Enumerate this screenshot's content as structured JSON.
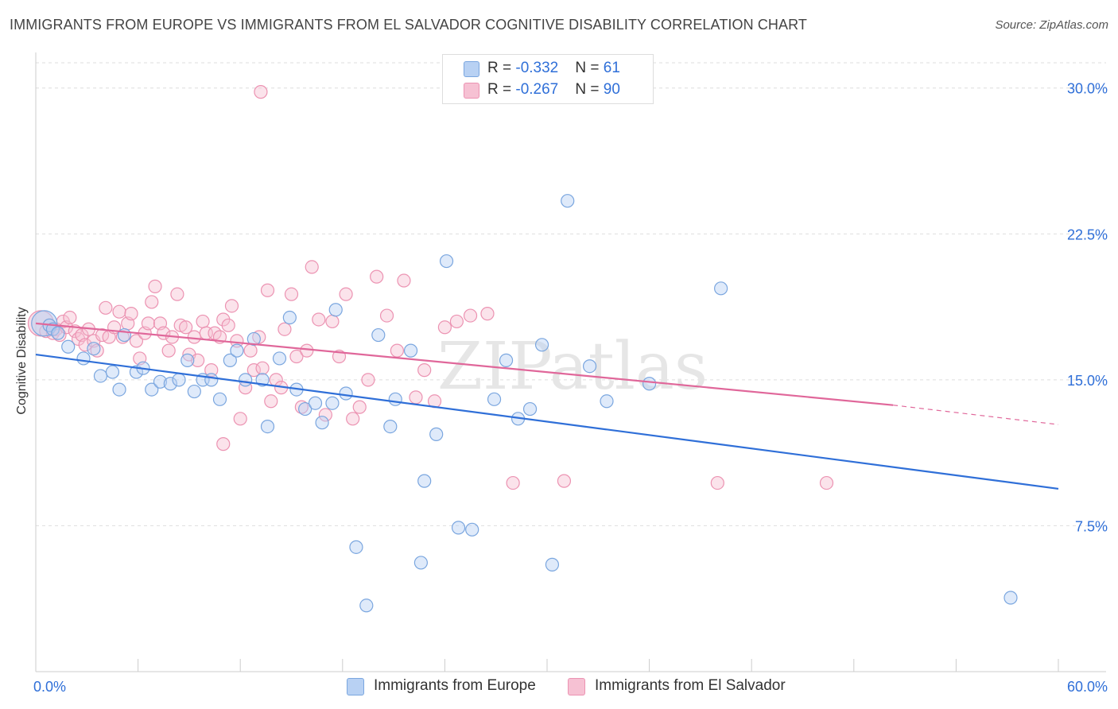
{
  "title": "IMMIGRANTS FROM EUROPE VS IMMIGRANTS FROM EL SALVADOR COGNITIVE DISABILITY CORRELATION CHART",
  "source": "Source: ZipAtlas.com",
  "watermark": "ZIPatlas",
  "legend_top": [
    {
      "r_label": "R = ",
      "r_value": "-0.332",
      "n_label": "N = ",
      "n_value": "61"
    },
    {
      "r_label": "R = ",
      "r_value": "-0.267",
      "n_label": "N = ",
      "n_value": "90"
    }
  ],
  "colors": {
    "europe_fill": "#b8d1f3",
    "europe_stroke": "#7aa6df",
    "europe_line": "#2f6fd8",
    "salvador_fill": "#f6c1d3",
    "salvador_stroke": "#ec93b2",
    "salvador_line": "#e0679a",
    "tick_label": "#2f6fd8",
    "grid": "#dddddd"
  },
  "chart_data": {
    "type": "scatter",
    "title": "IMMIGRANTS FROM EUROPE VS IMMIGRANTS FROM EL SALVADOR COGNITIVE DISABILITY CORRELATION CHART",
    "xlabel": "",
    "ylabel": "Cognitive Disability",
    "xlim": [
      0,
      60
    ],
    "ylim": [
      0,
      31.5
    ],
    "x_tick_labels": [
      "0.0%",
      "60.0%"
    ],
    "y_ticks": [
      7.5,
      15.0,
      22.5,
      30.0
    ],
    "y_tick_labels": [
      "7.5%",
      "15.0%",
      "22.5%",
      "30.0%"
    ],
    "series": [
      {
        "name": "Immigrants from Europe",
        "r": -0.332,
        "n": 61,
        "trend": {
          "x0": 0,
          "y0": 16.3,
          "x1": 60,
          "y1": 9.4
        },
        "points": [
          [
            0.5,
            17.9
          ],
          [
            0.8,
            17.8
          ],
          [
            1.0,
            17.6
          ],
          [
            1.3,
            17.4
          ],
          [
            1.9,
            16.7
          ],
          [
            2.8,
            16.1
          ],
          [
            3.4,
            16.6
          ],
          [
            3.8,
            15.2
          ],
          [
            4.5,
            15.4
          ],
          [
            4.9,
            14.5
          ],
          [
            5.2,
            17.3
          ],
          [
            5.9,
            15.4
          ],
          [
            6.3,
            15.6
          ],
          [
            6.8,
            14.5
          ],
          [
            7.3,
            14.9
          ],
          [
            7.9,
            14.8
          ],
          [
            8.4,
            15.0
          ],
          [
            8.9,
            16.0
          ],
          [
            9.3,
            14.4
          ],
          [
            9.8,
            15.0
          ],
          [
            10.3,
            15.0
          ],
          [
            10.8,
            14.0
          ],
          [
            11.4,
            16.0
          ],
          [
            11.8,
            16.5
          ],
          [
            12.3,
            15.0
          ],
          [
            12.8,
            17.1
          ],
          [
            13.3,
            15.0
          ],
          [
            13.6,
            12.6
          ],
          [
            14.3,
            16.1
          ],
          [
            14.9,
            18.2
          ],
          [
            15.3,
            14.5
          ],
          [
            15.8,
            13.5
          ],
          [
            16.4,
            13.8
          ],
          [
            16.8,
            12.8
          ],
          [
            17.4,
            13.8
          ],
          [
            17.6,
            18.6
          ],
          [
            18.2,
            14.3
          ],
          [
            18.8,
            6.4
          ],
          [
            19.4,
            3.4
          ],
          [
            20.1,
            17.3
          ],
          [
            20.8,
            12.6
          ],
          [
            21.1,
            14.0
          ],
          [
            22.0,
            16.5
          ],
          [
            22.6,
            5.6
          ],
          [
            22.8,
            9.8
          ],
          [
            23.5,
            12.2
          ],
          [
            24.1,
            21.1
          ],
          [
            24.8,
            7.4
          ],
          [
            25.6,
            7.3
          ],
          [
            26.9,
            14.0
          ],
          [
            27.6,
            16.0
          ],
          [
            28.3,
            13.0
          ],
          [
            29.0,
            13.5
          ],
          [
            29.7,
            16.8
          ],
          [
            30.3,
            5.5
          ],
          [
            31.2,
            24.2
          ],
          [
            32.5,
            15.7
          ],
          [
            33.5,
            13.9
          ],
          [
            36.0,
            14.8
          ],
          [
            40.2,
            19.7
          ],
          [
            57.2,
            3.8
          ]
        ]
      },
      {
        "name": "Immigrants from El Salvador",
        "r": -0.267,
        "n": 90,
        "trend": {
          "x0": 0,
          "y0": 17.9,
          "x1": 50.3,
          "y1": 13.7,
          "dash_x1": 60,
          "dash_y1": 12.7
        },
        "points": [
          [
            0.3,
            17.9
          ],
          [
            0.6,
            17.5
          ],
          [
            0.8,
            17.8
          ],
          [
            1.0,
            17.4
          ],
          [
            1.2,
            17.6
          ],
          [
            1.4,
            17.3
          ],
          [
            1.6,
            18.0
          ],
          [
            1.8,
            17.7
          ],
          [
            2.0,
            18.2
          ],
          [
            2.3,
            17.5
          ],
          [
            2.5,
            17.1
          ],
          [
            2.7,
            17.3
          ],
          [
            2.9,
            16.8
          ],
          [
            3.1,
            17.6
          ],
          [
            3.4,
            17.0
          ],
          [
            3.6,
            16.5
          ],
          [
            3.9,
            17.3
          ],
          [
            4.1,
            18.7
          ],
          [
            4.3,
            17.2
          ],
          [
            4.6,
            17.7
          ],
          [
            4.9,
            18.5
          ],
          [
            5.1,
            17.2
          ],
          [
            5.4,
            17.9
          ],
          [
            5.6,
            18.4
          ],
          [
            5.9,
            17.0
          ],
          [
            6.1,
            16.1
          ],
          [
            6.4,
            17.4
          ],
          [
            6.6,
            17.9
          ],
          [
            6.8,
            19.0
          ],
          [
            7.0,
            19.8
          ],
          [
            7.3,
            17.9
          ],
          [
            7.5,
            17.4
          ],
          [
            7.8,
            16.5
          ],
          [
            8.0,
            17.2
          ],
          [
            8.3,
            19.4
          ],
          [
            8.5,
            17.8
          ],
          [
            8.8,
            17.7
          ],
          [
            9.0,
            16.3
          ],
          [
            9.3,
            17.2
          ],
          [
            9.5,
            16.0
          ],
          [
            9.8,
            18.0
          ],
          [
            10.0,
            17.4
          ],
          [
            10.3,
            15.5
          ],
          [
            10.5,
            17.4
          ],
          [
            10.8,
            17.2
          ],
          [
            11.0,
            18.1
          ],
          [
            11.3,
            17.8
          ],
          [
            11.5,
            18.8
          ],
          [
            11.8,
            17.0
          ],
          [
            12.0,
            13.0
          ],
          [
            12.3,
            14.6
          ],
          [
            12.6,
            16.5
          ],
          [
            12.8,
            15.5
          ],
          [
            13.1,
            17.2
          ],
          [
            13.3,
            15.6
          ],
          [
            13.6,
            19.6
          ],
          [
            13.8,
            13.9
          ],
          [
            14.1,
            15.0
          ],
          [
            14.4,
            14.6
          ],
          [
            14.6,
            17.6
          ],
          [
            15.0,
            19.4
          ],
          [
            15.3,
            16.2
          ],
          [
            15.6,
            13.6
          ],
          [
            15.9,
            16.5
          ],
          [
            16.2,
            20.8
          ],
          [
            16.6,
            18.1
          ],
          [
            17.0,
            13.2
          ],
          [
            17.4,
            18.0
          ],
          [
            17.8,
            16.2
          ],
          [
            18.2,
            19.4
          ],
          [
            18.6,
            13.0
          ],
          [
            19.0,
            13.6
          ],
          [
            19.5,
            15.0
          ],
          [
            20.0,
            20.3
          ],
          [
            20.6,
            18.3
          ],
          [
            21.2,
            16.5
          ],
          [
            21.6,
            20.1
          ],
          [
            22.3,
            14.1
          ],
          [
            22.8,
            15.5
          ],
          [
            23.4,
            13.9
          ],
          [
            24.0,
            17.7
          ],
          [
            24.7,
            18.0
          ],
          [
            25.5,
            18.3
          ],
          [
            26.5,
            18.4
          ],
          [
            28.0,
            9.7
          ],
          [
            31.0,
            9.8
          ],
          [
            40.0,
            9.7
          ],
          [
            46.4,
            9.7
          ],
          [
            13.2,
            29.8
          ],
          [
            11.0,
            11.7
          ]
        ]
      }
    ]
  }
}
